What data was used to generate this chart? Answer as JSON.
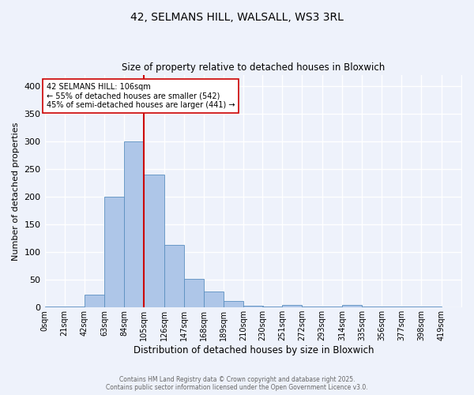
{
  "title1": "42, SELMANS HILL, WALSALL, WS3 3RL",
  "title2": "Size of property relative to detached houses in Bloxwich",
  "xlabel": "Distribution of detached houses by size in Bloxwich",
  "ylabel": "Number of detached properties",
  "bin_labels": [
    "0sqm",
    "21sqm",
    "42sqm",
    "63sqm",
    "84sqm",
    "105sqm",
    "126sqm",
    "147sqm",
    "168sqm",
    "189sqm",
    "210sqm",
    "230sqm",
    "251sqm",
    "272sqm",
    "293sqm",
    "314sqm",
    "335sqm",
    "356sqm",
    "377sqm",
    "398sqm",
    "419sqm"
  ],
  "bin_edges": [
    0,
    21,
    42,
    63,
    84,
    105,
    126,
    147,
    168,
    189,
    210,
    230,
    251,
    272,
    293,
    314,
    335,
    356,
    377,
    398,
    419
  ],
  "bar_heights": [
    2,
    2,
    23,
    200,
    300,
    240,
    113,
    51,
    29,
    11,
    3,
    2,
    4,
    2,
    2,
    4,
    1,
    1,
    1,
    2
  ],
  "bar_color": "#aec6e8",
  "bar_edge_color": "#5a8fc0",
  "vline_x": 105,
  "vline_color": "#cc0000",
  "annotation_text": "42 SELMANS HILL: 106sqm\n← 55% of detached houses are smaller (542)\n45% of semi-detached houses are larger (441) →",
  "annotation_box_color": "#ffffff",
  "annotation_box_edge_color": "#cc0000",
  "ylim": [
    0,
    420
  ],
  "yticks": [
    0,
    50,
    100,
    150,
    200,
    250,
    300,
    350,
    400
  ],
  "background_color": "#eef2fb",
  "grid_color": "#ffffff",
  "footer_line1": "Contains HM Land Registry data © Crown copyright and database right 2025.",
  "footer_line2": "Contains public sector information licensed under the Open Government Licence v3.0."
}
